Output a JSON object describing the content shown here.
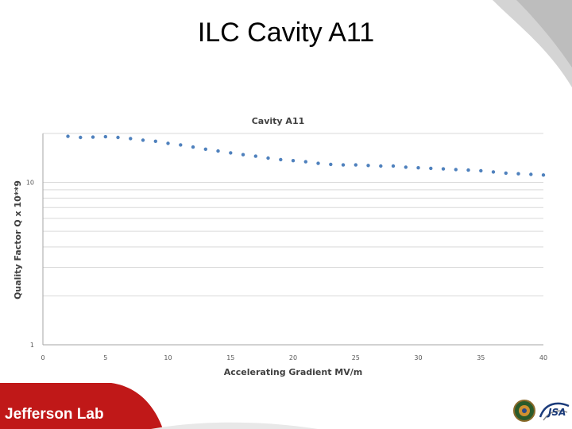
{
  "slide": {
    "title": "ILC Cavity A11",
    "logo_text": "Jefferson Lab",
    "partner_logo_text": "JSA"
  },
  "colors": {
    "accent_red": "#c01818",
    "marker_blue": "#4f81bd"
  },
  "icons": [
    "jefferson-lab-logo",
    "partner-seal-icon",
    "jsa-logo"
  ],
  "chart_data": {
    "type": "scatter",
    "title": "Cavity A11",
    "xlabel": "Accelerating Gradient MV/m",
    "ylabel": "Quality Factor Q x 10**9",
    "xlim": [
      0,
      40
    ],
    "ylim": [
      1,
      20
    ],
    "yscale": "log",
    "grid": true,
    "xticks": [
      0,
      5,
      10,
      15,
      20,
      25,
      30,
      35,
      40
    ],
    "yticks": [
      1,
      10
    ],
    "series": [
      {
        "x": [
          2,
          3,
          4,
          5,
          6,
          7,
          8,
          9,
          10,
          11,
          12,
          13,
          14,
          15,
          16,
          17,
          18,
          19,
          20,
          21,
          22,
          23,
          24,
          25,
          26,
          27,
          28,
          29,
          30,
          31,
          32,
          33,
          34,
          35,
          36,
          37,
          38,
          39,
          40
        ],
        "y": [
          19.2,
          18.9,
          19.0,
          19.1,
          18.9,
          18.6,
          18.2,
          17.9,
          17.4,
          17.0,
          16.5,
          16.0,
          15.6,
          15.2,
          14.8,
          14.5,
          14.1,
          13.8,
          13.6,
          13.4,
          13.1,
          12.9,
          12.8,
          12.8,
          12.7,
          12.6,
          12.6,
          12.4,
          12.3,
          12.2,
          12.1,
          12.0,
          11.9,
          11.8,
          11.6,
          11.4,
          11.3,
          11.2,
          11.1
        ]
      }
    ]
  }
}
